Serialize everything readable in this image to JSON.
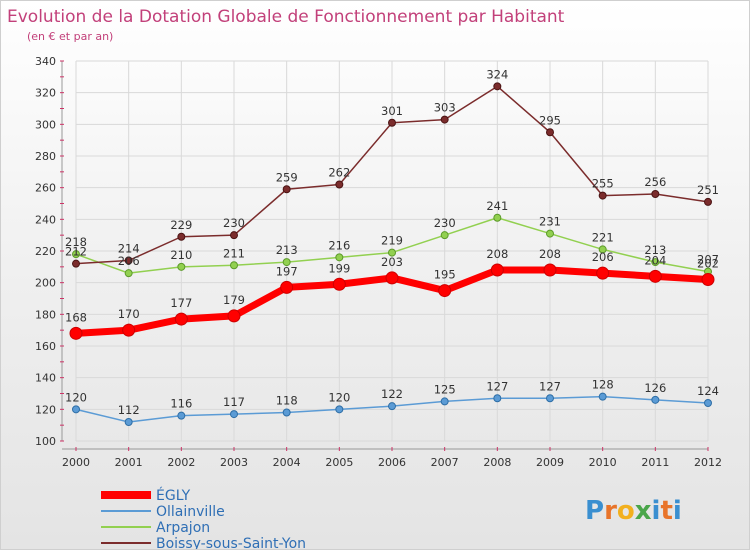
{
  "title": "Evolution de la Dotation Globale de Fonctionnement par Habitant",
  "subtitle": "(en € et par an)",
  "brand": {
    "letters": [
      "P",
      "r",
      "o",
      "x",
      "i",
      "t",
      "i"
    ],
    "colors": [
      "#3a8fd0",
      "#e8742a",
      "#f2b01e",
      "#4aa64a",
      "#3a8fd0",
      "#e8742a",
      "#3a8fd0"
    ]
  },
  "chart_data": {
    "type": "line",
    "title": "Evolution de la Dotation Globale de Fonctionnement par Habitant",
    "subtitle": "(en € et par an)",
    "x": [
      "2000",
      "2001",
      "2002",
      "2003",
      "2004",
      "2005",
      "2006",
      "2007",
      "2008",
      "2009",
      "2010",
      "2011",
      "2012"
    ],
    "ylim": [
      100,
      340
    ],
    "yticks": [
      100,
      120,
      140,
      160,
      180,
      200,
      220,
      240,
      260,
      280,
      300,
      320,
      340
    ],
    "grid": true,
    "legend_position": "bottom-left",
    "series": [
      {
        "name": "ÉGLY",
        "color": "#ff0000",
        "values": [
          168,
          170,
          177,
          179,
          197,
          199,
          203,
          195,
          208,
          208,
          206,
          204,
          202
        ]
      },
      {
        "name": "Ollainville",
        "color": "#5b9bd5",
        "values": [
          120,
          112,
          116,
          117,
          118,
          120,
          122,
          125,
          127,
          127,
          128,
          126,
          124
        ]
      },
      {
        "name": "Arpajon",
        "color": "#92d050",
        "values": [
          218,
          206,
          210,
          211,
          213,
          216,
          219,
          230,
          241,
          231,
          221,
          213,
          207
        ]
      },
      {
        "name": "Boissy-sous-Saint-Yon",
        "color": "#7b2c2c",
        "values": [
          212,
          214,
          229,
          230,
          259,
          262,
          301,
          303,
          324,
          295,
          255,
          256,
          251
        ]
      }
    ]
  }
}
